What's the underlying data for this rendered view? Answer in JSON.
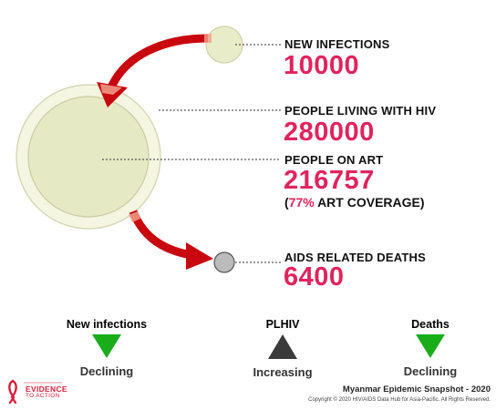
{
  "indicators": {
    "new_infections": {
      "label": "NEW INFECTIONS",
      "value": "10000"
    },
    "plhiv": {
      "label": "PEOPLE LIVING WITH HIV",
      "value": "280000"
    },
    "on_art": {
      "label": "PEOPLE ON ART",
      "value": "216757",
      "coverage_open": "(",
      "coverage_pct": "77%",
      "coverage_text": " ART COVERAGE)"
    },
    "deaths": {
      "label": "AIDS RELATED DEATHS",
      "value": "6400"
    }
  },
  "trends": [
    {
      "title": "New infections",
      "status": "Declining",
      "direction": "down",
      "color": "#1aad1a"
    },
    {
      "title": "PLHIV",
      "status": "Increasing",
      "direction": "up",
      "color": "#3a3a3a"
    },
    {
      "title": "Deaths",
      "status": "Declining",
      "direction": "down",
      "color": "#1aad1a"
    }
  ],
  "footer": {
    "title": "Myanmar Epidemic Snapshot - 2020",
    "copyright": "Copyright © 2020 HIV/AIDS Data Hub for Asia-Pacific. All Rights Reserved."
  },
  "logo": {
    "line1": "EVIDENCE",
    "line2": "TO ACTION"
  },
  "colors": {
    "accent": "#e0245e",
    "arrow": "#c8080e",
    "circle_fill": "#e9ecc8",
    "declining": "#1aad1a",
    "increasing": "#3a3a3a"
  }
}
